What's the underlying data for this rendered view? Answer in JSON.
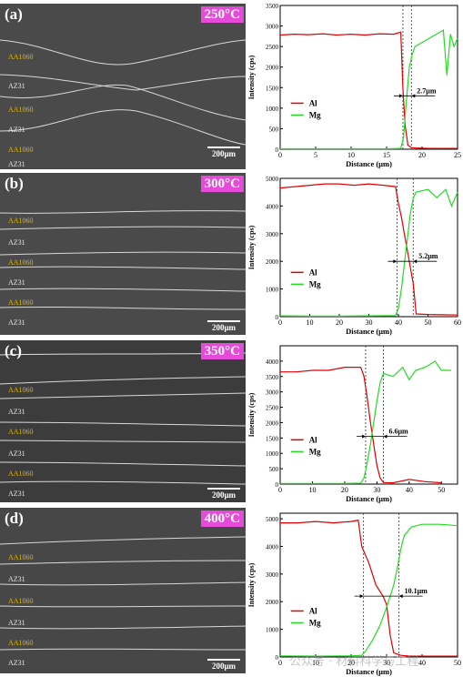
{
  "panels": [
    {
      "letter": "(a)",
      "temperature": "250°C",
      "scale": "200μm",
      "labels": [
        "AA1060",
        "AZ31",
        "AA1060",
        "AZ31",
        "AA1060",
        "AZ31"
      ],
      "xlabel": "Distance (μm)",
      "ylabel": "Intensity (cps)",
      "xticks": [
        "0",
        "5",
        "10",
        "15",
        "20",
        "25"
      ],
      "yticks": [
        "0",
        "500",
        "1000",
        "1500",
        "2000",
        "2500",
        "3000",
        "3500"
      ],
      "legend": [
        "Al",
        "Mg"
      ],
      "annotation": "2.7μm"
    },
    {
      "letter": "(b)",
      "temperature": "300°C",
      "scale": "200μm",
      "labels": [
        "AA1060",
        "AZ31",
        "AA1060",
        "AZ31",
        "AA1060",
        "AZ31"
      ],
      "xlabel": "Distance (μm)",
      "ylabel": "Intensity (cps)",
      "xticks": [
        "0",
        "10",
        "20",
        "30",
        "40",
        "50",
        "60"
      ],
      "yticks": [
        "0",
        "1000",
        "2000",
        "3000",
        "4000",
        "5000"
      ],
      "legend": [
        "Al",
        "Mg"
      ],
      "annotation": "5.2μm"
    },
    {
      "letter": "(c)",
      "temperature": "350°C",
      "scale": "200μm",
      "labels": [
        "AA1060",
        "AZ31",
        "AA1060",
        "AZ31",
        "AA1060",
        "AZ31"
      ],
      "xlabel": "Distance (μm)",
      "ylabel": "Intensity (cps)",
      "xticks": [
        "0",
        "10",
        "20",
        "30",
        "40",
        "50"
      ],
      "yticks": [
        "0",
        "500",
        "1000",
        "1500",
        "2000",
        "2500",
        "3000",
        "3500",
        "4000"
      ],
      "legend": [
        "Al",
        "Mg"
      ],
      "annotation": "6.6μm"
    },
    {
      "letter": "(d)",
      "temperature": "400°C",
      "scale": "200μm",
      "labels": [
        "AA1060",
        "AZ31",
        "AA1060",
        "AZ31",
        "AA1060",
        "AZ31"
      ],
      "xlabel": "Distance (μm)",
      "ylabel": "Intensity (cps)",
      "xticks": [
        "0",
        "10",
        "20",
        "30",
        "40",
        "50"
      ],
      "yticks": [
        "0",
        "1000",
        "2000",
        "3000",
        "4000",
        "5000"
      ],
      "legend": [
        "Al",
        "Mg"
      ],
      "annotation": "10.1μm"
    }
  ],
  "watermark": "公众号 · 材料科学与工程",
  "colors": {
    "al": "#e00000",
    "mg": "#22dd22",
    "badge": "#e64ad8",
    "al_label": "#e0b400"
  },
  "chart_data": [
    {
      "type": "line",
      "xlim": [
        0,
        25
      ],
      "ylim": [
        0,
        3500
      ],
      "xticks": [
        0,
        5,
        10,
        15,
        20,
        25
      ],
      "yticks": [
        0,
        500,
        1000,
        1500,
        2000,
        2500,
        3000,
        3500
      ],
      "xlabel": "Distance (μm)",
      "ylabel": "Intensity (cps)",
      "series": [
        {
          "name": "Al",
          "color": "#e00000",
          "x": [
            0,
            2,
            4,
            6,
            8,
            10,
            12,
            14,
            16,
            17,
            17.3,
            17.6,
            18,
            18.5,
            19,
            21,
            23,
            25
          ],
          "y": [
            2780,
            2800,
            2790,
            2810,
            2780,
            2800,
            2780,
            2810,
            2800,
            2850,
            1500,
            600,
            100,
            40,
            30,
            20,
            20,
            20
          ]
        },
        {
          "name": "Mg",
          "color": "#22dd22",
          "x": [
            0,
            5,
            10,
            15,
            17,
            17.4,
            17.8,
            18.2,
            18.6,
            19,
            20,
            21,
            22,
            23,
            23.5,
            24,
            24.5,
            25
          ],
          "y": [
            10,
            10,
            10,
            10,
            20,
            300,
            1200,
            2000,
            2300,
            2500,
            2600,
            2700,
            2800,
            2900,
            1800,
            2800,
            2500,
            2700
          ]
        }
      ],
      "interface_lines": [
        17.3,
        18.5
      ],
      "annotation": "2.7μm",
      "annotation_y": 1300
    },
    {
      "type": "line",
      "xlim": [
        0,
        60
      ],
      "ylim": [
        0,
        5000
      ],
      "xticks": [
        0,
        10,
        20,
        30,
        40,
        50,
        60
      ],
      "yticks": [
        0,
        1000,
        2000,
        3000,
        4000,
        5000
      ],
      "xlabel": "Distance (μm)",
      "ylabel": "Intensity (cps)",
      "series": [
        {
          "name": "Al",
          "color": "#e00000",
          "x": [
            0,
            5,
            10,
            15,
            20,
            25,
            30,
            35,
            39,
            40,
            41,
            42,
            43,
            44,
            45,
            46,
            50,
            55,
            60
          ],
          "y": [
            4650,
            4700,
            4750,
            4800,
            4800,
            4750,
            4800,
            4750,
            4700,
            4100,
            3600,
            3000,
            2400,
            1800,
            1200,
            100,
            80,
            70,
            60
          ]
        },
        {
          "name": "Mg",
          "color": "#22dd22",
          "x": [
            0,
            10,
            20,
            30,
            39,
            40,
            41,
            42,
            43,
            44,
            45,
            46,
            50,
            53,
            56,
            58,
            60
          ],
          "y": [
            30,
            20,
            20,
            30,
            40,
            300,
            1000,
            1900,
            2800,
            3700,
            4300,
            4500,
            4600,
            4300,
            4600,
            4000,
            4500
          ]
        }
      ],
      "interface_lines": [
        39.5,
        45
      ],
      "annotation": "5.2μm",
      "annotation_y": 2000
    },
    {
      "type": "line",
      "xlim": [
        0,
        55
      ],
      "ylim": [
        0,
        4500
      ],
      "xticks": [
        0,
        10,
        20,
        30,
        40,
        50
      ],
      "yticks": [
        0,
        500,
        1000,
        1500,
        2000,
        2500,
        3000,
        3500,
        4000
      ],
      "xlabel": "Distance (μm)",
      "ylabel": "Intensity (cps)",
      "series": [
        {
          "name": "Al",
          "color": "#e00000",
          "x": [
            0,
            5,
            10,
            15,
            20,
            25,
            26,
            27,
            28,
            29,
            30,
            31,
            32,
            35,
            40,
            45,
            50
          ],
          "y": [
            3650,
            3650,
            3700,
            3700,
            3800,
            3800,
            3500,
            2800,
            2000,
            1300,
            600,
            200,
            50,
            40,
            150,
            80,
            40
          ]
        },
        {
          "name": "Mg",
          "color": "#22dd22",
          "x": [
            0,
            10,
            20,
            25,
            26,
            27,
            28,
            29,
            30,
            31,
            32,
            35,
            38,
            40,
            42,
            45,
            48,
            50,
            53
          ],
          "y": [
            20,
            20,
            20,
            30,
            200,
            700,
            1300,
            2000,
            2700,
            3300,
            3600,
            3500,
            3800,
            3400,
            3700,
            3800,
            4000,
            3700,
            3700
          ]
        }
      ],
      "interface_lines": [
        26.5,
        32
      ],
      "annotation": "6.6μm",
      "annotation_y": 1550
    },
    {
      "type": "line",
      "xlim": [
        0,
        50
      ],
      "ylim": [
        0,
        5200
      ],
      "xticks": [
        0,
        10,
        20,
        30,
        40,
        50
      ],
      "yticks": [
        0,
        1000,
        2000,
        3000,
        4000,
        5000
      ],
      "xlabel": "Distance (μm)",
      "ylabel": "Intensity (cps)",
      "series": [
        {
          "name": "Al",
          "color": "#e00000",
          "x": [
            0,
            5,
            10,
            15,
            20,
            22,
            23,
            24,
            25,
            27,
            29,
            30,
            31,
            32,
            34,
            36,
            40,
            45,
            50
          ],
          "y": [
            4850,
            4850,
            4900,
            4850,
            4900,
            4950,
            4000,
            3700,
            3400,
            2600,
            2200,
            1900,
            800,
            150,
            60,
            40,
            30,
            30,
            30
          ]
        },
        {
          "name": "Mg",
          "color": "#22dd22",
          "x": [
            0,
            10,
            20,
            23,
            24,
            26,
            28,
            30,
            32,
            33,
            34,
            35,
            37,
            40,
            45,
            50
          ],
          "y": [
            40,
            30,
            40,
            60,
            200,
            600,
            1100,
            1800,
            2600,
            3200,
            3900,
            4400,
            4700,
            4800,
            4800,
            4750
          ]
        }
      ],
      "interface_lines": [
        23.5,
        33.5
      ],
      "annotation": "10.1μm",
      "annotation_y": 2200
    }
  ]
}
